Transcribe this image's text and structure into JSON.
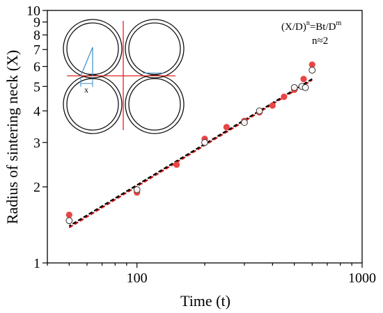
{
  "chart_data": {
    "type": "scatter",
    "title": "",
    "xlabel": "Time (t)",
    "ylabel": "Radius of sintering neck (X)",
    "xscale": "log",
    "yscale": "log",
    "xlim": [
      40,
      1000
    ],
    "ylim": [
      1,
      10
    ],
    "x_tick_labels": [
      "100",
      "1000"
    ],
    "y_tick_labels": [
      "1",
      "2",
      "3",
      "4",
      "5",
      "6",
      "7",
      "8",
      "9",
      "10"
    ],
    "annotation": {
      "line1_pre": "(X/D)",
      "line1_sup1": "n",
      "line1_mid": "=Bt/D",
      "line1_sup2": "m",
      "line2": "n≈2"
    },
    "inset": {
      "label": "x"
    },
    "colors": {
      "filled": "#e84545",
      "open_stroke": "#333333",
      "fit_red": "#cc1111",
      "fit_black": "#000000",
      "inset_red": "#e02020",
      "inset_blue": "#3b8ec9"
    },
    "series": [
      {
        "marker": "filled-circle",
        "x": [
          50,
          100,
          150,
          200,
          250,
          300,
          350,
          400,
          450,
          500,
          550,
          600
        ],
        "y": [
          1.55,
          1.9,
          2.45,
          3.1,
          3.45,
          3.65,
          3.95,
          4.2,
          4.55,
          4.85,
          5.35,
          6.1
        ]
      },
      {
        "marker": "open-circle",
        "x": [
          50,
          100,
          200,
          300,
          350,
          500,
          540,
          560,
          600
        ],
        "y": [
          1.47,
          1.95,
          3.0,
          3.6,
          4.0,
          4.95,
          5.0,
          4.95,
          5.8
        ]
      }
    ],
    "fit_lines": [
      {
        "style": "dashed",
        "x": [
          50,
          600
        ],
        "y": [
          1.38,
          5.3
        ]
      },
      {
        "style": "dashed",
        "x": [
          50,
          600
        ],
        "y": [
          1.4,
          5.35
        ]
      }
    ]
  }
}
